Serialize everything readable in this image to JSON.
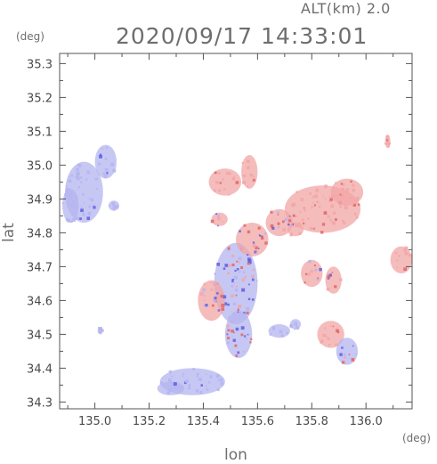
{
  "header": {
    "altitude_label": "ALT(km)  2.0",
    "timestamp": "2020/09/17 14:33:01"
  },
  "chart_data": {
    "type": "heatmap",
    "title": "2020/09/17 14:33:01",
    "xlabel": "lon",
    "ylabel": "lat",
    "x_unit": "(deg)",
    "y_unit": "(deg)",
    "xlim": [
      134.87,
      136.17
    ],
    "ylim": [
      34.28,
      35.33
    ],
    "x_ticks": [
      "135.0",
      "135.2",
      "135.4",
      "135.6",
      "135.8",
      "136.0"
    ],
    "x_tick_values": [
      135.0,
      135.2,
      135.4,
      135.6,
      135.8,
      136.0
    ],
    "y_ticks": [
      "34.3",
      "34.4",
      "34.5",
      "34.6",
      "34.7",
      "34.8",
      "34.9",
      "35.0",
      "35.1",
      "35.2",
      "35.3"
    ],
    "y_tick_values": [
      34.3,
      34.4,
      34.5,
      34.6,
      34.7,
      34.8,
      34.9,
      35.0,
      35.1,
      35.2,
      35.3
    ],
    "grid": false,
    "colors": {
      "positive": "#f2a6a6",
      "negative": "#b4b4f0",
      "mixed_positive": "#e06666",
      "mixed_negative": "#5e5ee0"
    },
    "regions": [
      {
        "lon": 134.96,
        "lat": 34.92,
        "rlon": 0.07,
        "rlat": 0.09,
        "sign": "negative",
        "mixed": false
      },
      {
        "lon": 135.04,
        "lat": 35.01,
        "rlon": 0.04,
        "rlat": 0.05,
        "sign": "negative",
        "mixed": false
      },
      {
        "lon": 134.91,
        "lat": 34.88,
        "rlon": 0.03,
        "rlat": 0.05,
        "sign": "negative",
        "mixed": false
      },
      {
        "lon": 135.07,
        "lat": 34.88,
        "rlon": 0.02,
        "rlat": 0.015,
        "sign": "negative",
        "mixed": false
      },
      {
        "lon": 135.02,
        "lat": 34.51,
        "rlon": 0.01,
        "rlat": 0.01,
        "sign": "negative",
        "mixed": false
      },
      {
        "lon": 135.36,
        "lat": 34.36,
        "rlon": 0.12,
        "rlat": 0.04,
        "sign": "negative",
        "mixed": false
      },
      {
        "lon": 135.28,
        "lat": 34.34,
        "rlon": 0.05,
        "rlat": 0.02,
        "sign": "negative",
        "mixed": false
      },
      {
        "lon": 135.52,
        "lat": 34.65,
        "rlon": 0.08,
        "rlat": 0.12,
        "sign": "negative",
        "mixed": true
      },
      {
        "lon": 135.53,
        "lat": 34.5,
        "rlon": 0.05,
        "rlat": 0.07,
        "sign": "negative",
        "mixed": true
      },
      {
        "lon": 135.58,
        "lat": 34.78,
        "rlon": 0.06,
        "rlat": 0.05,
        "sign": "positive",
        "mixed": true
      },
      {
        "lon": 135.43,
        "lat": 34.6,
        "rlon": 0.05,
        "rlat": 0.06,
        "sign": "positive",
        "mixed": true
      },
      {
        "lon": 135.68,
        "lat": 34.51,
        "rlon": 0.04,
        "rlat": 0.02,
        "sign": "negative",
        "mixed": false
      },
      {
        "lon": 135.48,
        "lat": 34.95,
        "rlon": 0.06,
        "rlat": 0.04,
        "sign": "positive",
        "mixed": false
      },
      {
        "lon": 135.57,
        "lat": 34.98,
        "rlon": 0.03,
        "rlat": 0.05,
        "sign": "positive",
        "mixed": false
      },
      {
        "lon": 135.84,
        "lat": 34.87,
        "rlon": 0.14,
        "rlat": 0.07,
        "sign": "positive",
        "mixed": false
      },
      {
        "lon": 135.93,
        "lat": 34.92,
        "rlon": 0.06,
        "rlat": 0.04,
        "sign": "positive",
        "mixed": false
      },
      {
        "lon": 135.74,
        "lat": 34.81,
        "rlon": 0.03,
        "rlat": 0.02,
        "sign": "positive",
        "mixed": true
      },
      {
        "lon": 135.8,
        "lat": 34.68,
        "rlon": 0.04,
        "rlat": 0.04,
        "sign": "positive",
        "mixed": true
      },
      {
        "lon": 135.88,
        "lat": 34.66,
        "rlon": 0.03,
        "rlat": 0.04,
        "sign": "positive",
        "mixed": true
      },
      {
        "lon": 135.87,
        "lat": 34.5,
        "rlon": 0.05,
        "rlat": 0.04,
        "sign": "positive",
        "mixed": false
      },
      {
        "lon": 135.93,
        "lat": 34.45,
        "rlon": 0.04,
        "rlat": 0.04,
        "sign": "negative",
        "mixed": true
      },
      {
        "lon": 135.74,
        "lat": 34.53,
        "rlon": 0.02,
        "rlat": 0.015,
        "sign": "negative",
        "mixed": false
      },
      {
        "lon": 136.13,
        "lat": 34.72,
        "rlon": 0.04,
        "rlat": 0.04,
        "sign": "positive",
        "mixed": false
      },
      {
        "lon": 136.08,
        "lat": 35.07,
        "rlon": 0.01,
        "rlat": 0.02,
        "sign": "positive",
        "mixed": false
      },
      {
        "lon": 135.68,
        "lat": 34.83,
        "rlon": 0.05,
        "rlat": 0.04,
        "sign": "positive",
        "mixed": true
      },
      {
        "lon": 135.46,
        "lat": 34.84,
        "rlon": 0.03,
        "rlat": 0.02,
        "sign": "positive",
        "mixed": true
      }
    ]
  }
}
